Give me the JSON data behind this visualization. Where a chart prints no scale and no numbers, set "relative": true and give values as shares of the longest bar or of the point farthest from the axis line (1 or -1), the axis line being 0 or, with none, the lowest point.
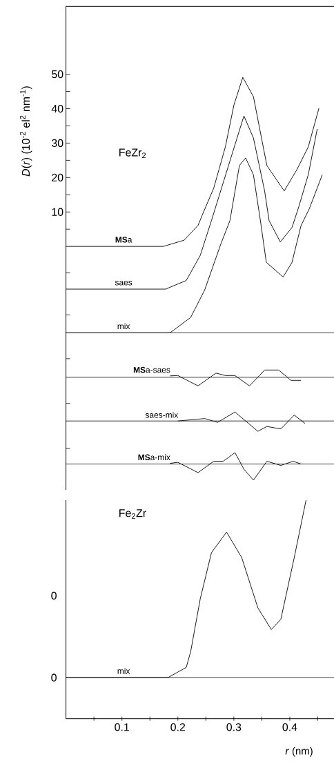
{
  "chart_data": [
    {
      "type": "line",
      "ylabel": "*D*(*r*) (10$^{-2}$ el$^{2}$ nm$^{-1}$)",
      "annotations": [
        "FeZr$_{2}$"
      ],
      "tick_labels": "y",
      "xlim": [
        0,
        0.479
      ],
      "ylim": [
        -70.7,
        69.7
      ],
      "yticks": [
        {
          "value": -58.7,
          "label": null
        },
        {
          "value": -45.6,
          "label": null
        },
        {
          "value": -32.6,
          "label": null
        },
        {
          "value": -19.9,
          "label": null
        },
        {
          "value": -7.7,
          "label": null
        },
        {
          "value": 5,
          "label": null
        },
        10,
        {
          "value": 15,
          "label": null
        },
        20,
        {
          "value": 25,
          "label": null
        },
        30,
        {
          "value": 35,
          "label": null
        },
        40,
        {
          "value": 45,
          "label": null
        },
        50
      ],
      "ref_lines": [
        {
          "axis": "y",
          "value": -25.1
        },
        {
          "axis": "y",
          "value": -38
        },
        {
          "axis": "y",
          "value": -50.7
        },
        {
          "axis": "y",
          "value": -63.2
        }
      ],
      "line_style": "solid",
      "series": [
        {
          "name": "**MS**a",
          "color": "#000000",
          "x": [
            0,
            0.1,
            0.174,
            0.211,
            0.236,
            0.243,
            0.264,
            0.285,
            0.3,
            0.316,
            0.335,
            0.359,
            0.39,
            0.412,
            0.433,
            0.452
          ],
          "values": [
            0,
            0,
            0,
            1.8,
            6.1,
            8.9,
            16.9,
            29,
            41,
            49.1,
            43.5,
            23.5,
            16.1,
            22.1,
            28.9,
            40.1
          ]
        },
        {
          "name": "saes",
          "color": "#000000",
          "x": [
            0,
            0.178,
            0.215,
            0.24,
            0.26,
            0.293,
            0.318,
            0.335,
            0.355,
            0.363,
            0.383,
            0.404,
            0.416,
            0.433,
            0.449
          ],
          "values": [
            -12.4,
            -12.4,
            -9.9,
            -2.6,
            7.5,
            24.8,
            37.9,
            31.5,
            16.1,
            7.5,
            1.3,
            5.5,
            11.5,
            20.8,
            34.1
          ]
        },
        {
          "name": "mix",
          "color": "#000000",
          "x": [
            0,
            0.1,
            0.186,
            0.223,
            0.248,
            0.277,
            0.293,
            0.31,
            0.321,
            0.335,
            0.347,
            0.358,
            0.388,
            0.404,
            0.42,
            0.435,
            0.458
          ],
          "values": [
            -25.1,
            -25.1,
            -25.1,
            -20.6,
            -12.6,
            0.8,
            7.5,
            23.5,
            25.7,
            20.8,
            8,
            -4.6,
            -8.9,
            -4.6,
            6,
            11,
            20.8
          ]
        },
        {
          "name": "**MS**a-saes",
          "color": "#000000",
          "x": [
            0.186,
            0.2,
            0.236,
            0.268,
            0.285,
            0.302,
            0.328,
            0.355,
            0.38,
            0.402,
            0.42
          ],
          "values": [
            -37.6,
            -37.5,
            -40.5,
            -36.8,
            -37.5,
            -37.5,
            -40.5,
            -35.9,
            -35.9,
            -38.9,
            -38.9
          ]
        },
        {
          "name": "saes-mix",
          "color": "#000000",
          "x": [
            0.2,
            0.248,
            0.271,
            0.302,
            0.343,
            0.359,
            0.384,
            0.408,
            0.427
          ],
          "values": [
            -50.7,
            -50,
            -51.1,
            -48.1,
            -53.7,
            -52.3,
            -53,
            -49,
            -51.4
          ]
        },
        {
          "name": "**MS**a-mix",
          "color": "#000000",
          "x": [
            0.186,
            0.2,
            0.236,
            0.264,
            0.281,
            0.302,
            0.318,
            0.335,
            0.359,
            0.384,
            0.406,
            0.42
          ],
          "values": [
            -63,
            -62.7,
            -65.7,
            -62.4,
            -62.4,
            -59.9,
            -64.7,
            -67.9,
            -62.4,
            -63.6,
            -62.4,
            -63.2
          ]
        }
      ]
    },
    {
      "type": "line",
      "xlabel": "*r* (nm)",
      "annotations": [
        "Fe$_{2}$Zr",
        "0",
        "0"
      ],
      "relative": true,
      "xlim": [
        0,
        0.479
      ],
      "xticks": [
        {
          "value": 0.05,
          "label": null
        },
        0.1,
        {
          "value": 0.15,
          "label": null
        },
        0.2,
        {
          "value": 0.25,
          "label": null
        },
        0.3,
        {
          "value": 0.35,
          "label": null
        },
        0.4,
        {
          "value": 0.45,
          "label": null
        }
      ],
      "ref_lines": [
        {
          "axis": "y",
          "value": 0.188
        }
      ],
      "line_style": "solid",
      "series": [
        {
          "name": "mix",
          "color": "#000000",
          "x": [
            0,
            0.1,
            0.182,
            0.215,
            0.223,
            0.24,
            0.26,
            0.287,
            0.314,
            0.343,
            0.367,
            0.384,
            0.408,
            0.429
          ],
          "values": [
            0.188,
            0.188,
            0.188,
            0.235,
            0.309,
            0.549,
            0.76,
            0.854,
            0.738,
            0.507,
            0.408,
            0.455,
            0.738,
            1
          ]
        }
      ]
    }
  ]
}
